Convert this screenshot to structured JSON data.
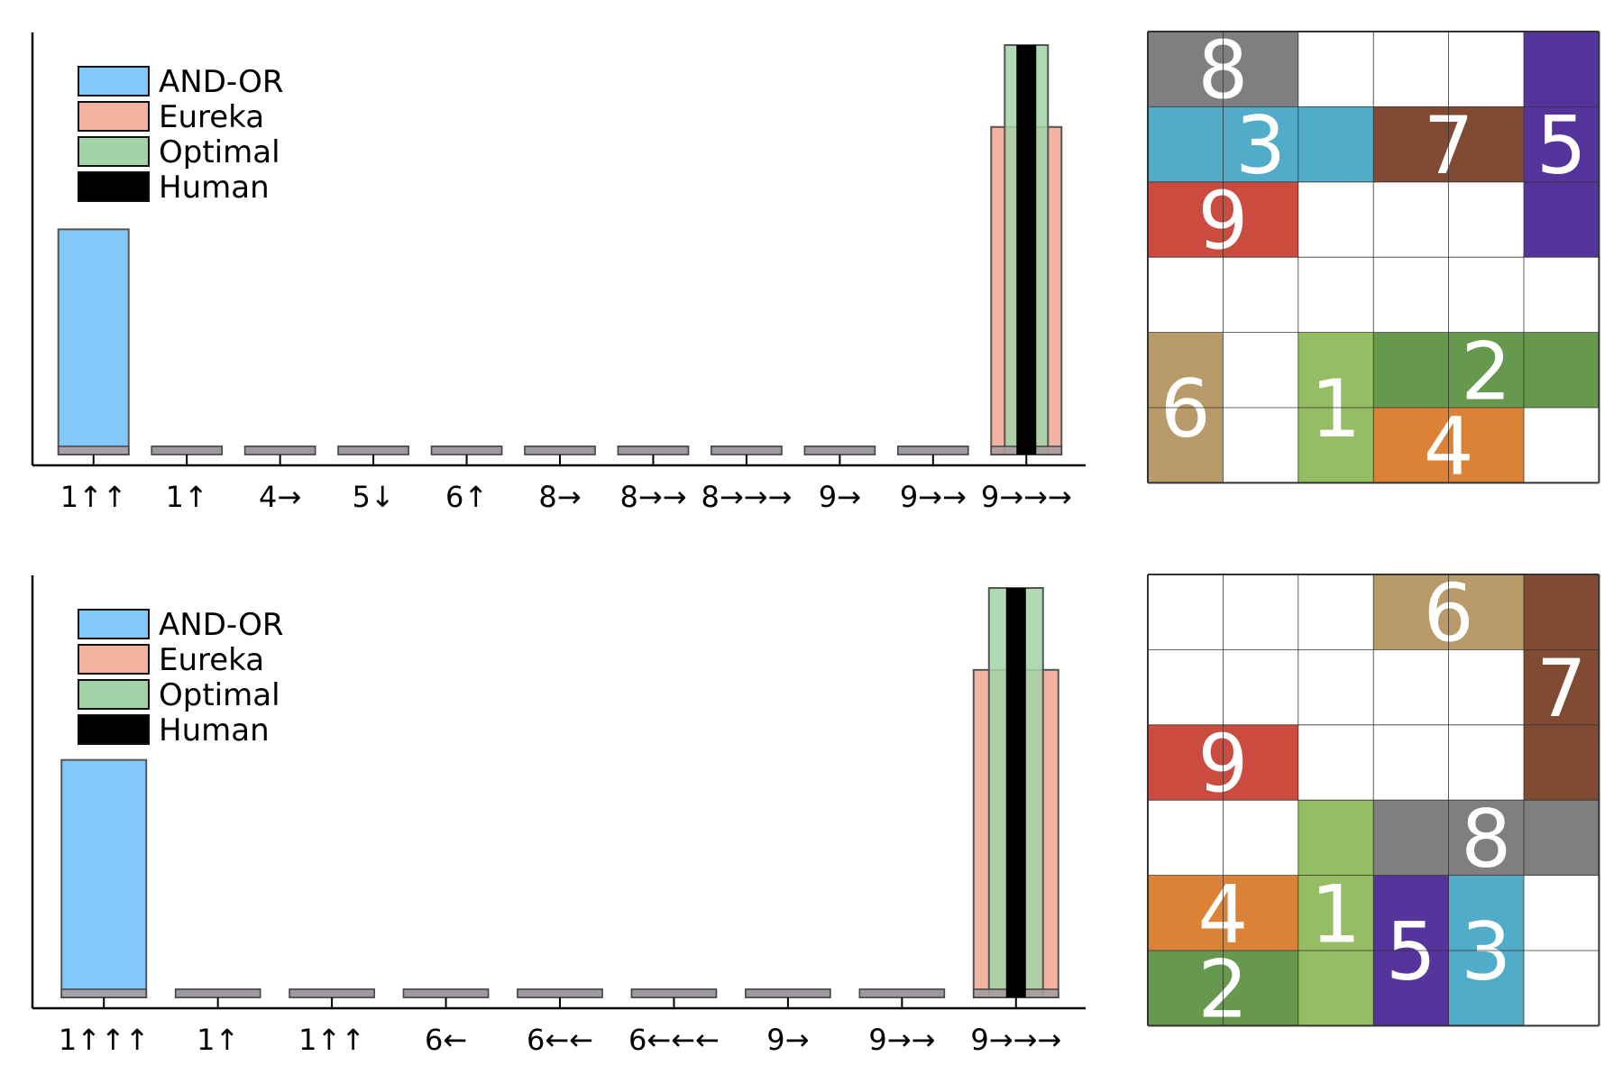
{
  "colors": {
    "AND-OR": "#81c9fb",
    "Eureka": "#f2b4a1",
    "Optimal": "#a2d3a6",
    "Human": "#000000",
    "small_bar_fill": "#a89ba0",
    "small_bar_stripe": "#3e7fa8",
    "grid_line": "#333333"
  },
  "legend": [
    "AND-OR",
    "Eureka",
    "Optimal",
    "Human"
  ],
  "chart_data": [
    {
      "type": "bar",
      "categories": [
        "1↑↑",
        "1↑",
        "4→",
        "5↓",
        "6↑",
        "8→",
        "8→→",
        "8→→→",
        "9→",
        "9→→",
        "9→→→"
      ],
      "ylim": [
        0,
        1
      ],
      "series": [
        {
          "name": "AND-OR",
          "values": [
            0.55,
            0.02,
            0.02,
            0.02,
            0.02,
            0.02,
            0.02,
            0.02,
            0.02,
            0.02,
            0.02
          ]
        },
        {
          "name": "Eureka",
          "values": [
            0.02,
            0.02,
            0.02,
            0.02,
            0.02,
            0.02,
            0.02,
            0.02,
            0.02,
            0.02,
            0.8
          ]
        },
        {
          "name": "Optimal",
          "values": [
            0,
            0,
            0,
            0,
            0,
            0,
            0,
            0,
            0,
            0,
            1.0
          ]
        },
        {
          "name": "Human",
          "values": [
            0,
            0,
            0,
            0,
            0,
            0,
            0,
            0,
            0,
            0,
            1.0
          ]
        }
      ],
      "grid": {
        "rows": 6,
        "cols": 6,
        "pieces": [
          {
            "label": "8",
            "color": "#7f7f7f",
            "cells": [
              [
                0,
                0
              ],
              [
                0,
                1
              ]
            ]
          },
          {
            "label": "3",
            "color": "#50acc9",
            "cells": [
              [
                1,
                0
              ],
              [
                1,
                1
              ],
              [
                1,
                2
              ]
            ]
          },
          {
            "label": "7",
            "color": "#804a33",
            "cells": [
              [
                1,
                3
              ],
              [
                1,
                4
              ]
            ]
          },
          {
            "label": "5",
            "color": "#55359c",
            "cells": [
              [
                0,
                5
              ],
              [
                1,
                5
              ],
              [
                2,
                5
              ]
            ]
          },
          {
            "label": "9",
            "color": "#cb4c3f",
            "cells": [
              [
                2,
                0
              ],
              [
                2,
                1
              ]
            ]
          },
          {
            "label": "6",
            "color": "#b99b69",
            "cells": [
              [
                4,
                0
              ],
              [
                5,
                0
              ]
            ]
          },
          {
            "label": "1",
            "color": "#95bd64",
            "cells": [
              [
                4,
                2
              ],
              [
                5,
                2
              ]
            ]
          },
          {
            "label": "2",
            "color": "#66984d",
            "cells": [
              [
                4,
                3
              ],
              [
                4,
                4
              ],
              [
                4,
                5
              ]
            ]
          },
          {
            "label": "4",
            "color": "#db8237",
            "cells": [
              [
                5,
                3
              ],
              [
                5,
                4
              ]
            ]
          }
        ]
      }
    },
    {
      "type": "bar",
      "categories": [
        "1↑↑↑",
        "1↑",
        "1↑↑",
        "6←",
        "6←←",
        "6←←←",
        "9→",
        "9→→",
        "9→→→"
      ],
      "ylim": [
        0,
        1
      ],
      "series": [
        {
          "name": "AND-OR",
          "values": [
            0.58,
            0.02,
            0.02,
            0.02,
            0.02,
            0.02,
            0.02,
            0.02,
            0.02
          ]
        },
        {
          "name": "Eureka",
          "values": [
            0.02,
            0.02,
            0.02,
            0.02,
            0.02,
            0.02,
            0.02,
            0.02,
            0.8
          ]
        },
        {
          "name": "Optimal",
          "values": [
            0,
            0,
            0,
            0,
            0,
            0,
            0,
            0,
            1.0
          ]
        },
        {
          "name": "Human",
          "values": [
            0,
            0,
            0,
            0,
            0,
            0,
            0,
            0,
            1.0
          ]
        }
      ],
      "grid": {
        "rows": 6,
        "cols": 6,
        "pieces": [
          {
            "label": "6",
            "color": "#b99b69",
            "cells": [
              [
                0,
                3
              ],
              [
                0,
                4
              ]
            ]
          },
          {
            "label": "7",
            "color": "#804a33",
            "cells": [
              [
                0,
                5
              ],
              [
                1,
                5
              ],
              [
                2,
                5
              ]
            ]
          },
          {
            "label": "9",
            "color": "#cb4c3f",
            "cells": [
              [
                2,
                0
              ],
              [
                2,
                1
              ]
            ]
          },
          {
            "label": "8",
            "color": "#7f7f7f",
            "cells": [
              [
                3,
                3
              ],
              [
                3,
                4
              ],
              [
                3,
                5
              ]
            ]
          },
          {
            "label": "1",
            "color": "#95bd64",
            "cells": [
              [
                3,
                2
              ],
              [
                4,
                2
              ],
              [
                5,
                2
              ]
            ]
          },
          {
            "label": "4",
            "color": "#db8237",
            "cells": [
              [
                4,
                0
              ],
              [
                4,
                1
              ]
            ]
          },
          {
            "label": "2",
            "color": "#66984d",
            "cells": [
              [
                5,
                0
              ],
              [
                5,
                1
              ]
            ]
          },
          {
            "label": "5",
            "color": "#55359c",
            "cells": [
              [
                4,
                3
              ],
              [
                5,
                3
              ]
            ]
          },
          {
            "label": "3",
            "color": "#50acc9",
            "cells": [
              [
                4,
                4
              ],
              [
                5,
                4
              ]
            ]
          }
        ]
      }
    }
  ]
}
